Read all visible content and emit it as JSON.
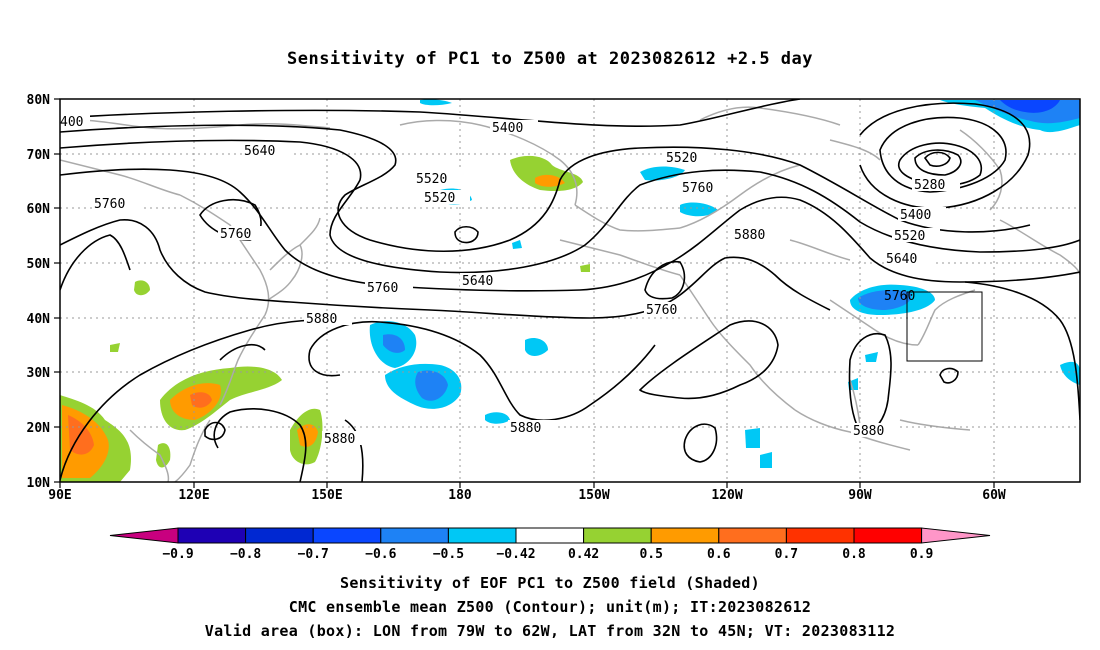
{
  "title": "Sensitivity of PC1 to Z500 at 2023082612 +2.5 day",
  "lat_labels": [
    "80N",
    "70N",
    "60N",
    "50N",
    "40N",
    "30N",
    "20N",
    "10N"
  ],
  "lon_labels": [
    "90E",
    "120E",
    "150E",
    "180",
    "150W",
    "120W",
    "90W",
    "60W"
  ],
  "contour_labels": [
    "400",
    "5400",
    "5640",
    "5520",
    "5520",
    "5760",
    "5760",
    "5760",
    "5640",
    "5520",
    "5760",
    "5880",
    "5880",
    "5280",
    "5400",
    "5520",
    "5640",
    "5760",
    "5760",
    "5880",
    "5880",
    "5880"
  ],
  "colorbar": {
    "labels": [
      "−0.9",
      "−0.8",
      "−0.7",
      "−0.6",
      "−0.5",
      "−0.42",
      "0.42",
      "0.5",
      "0.6",
      "0.7",
      "0.8",
      "0.9"
    ],
    "colors": [
      "#c8007f",
      "#1e00b4",
      "#0028d2",
      "#0a46ff",
      "#1e82f5",
      "#00c8f5",
      "#ffffff",
      "#96d232",
      "#ff9b00",
      "#ff6e1e",
      "#ff3200",
      "#ff0000",
      "#ff96c8"
    ]
  },
  "captions": [
    "Sensitivity of EOF PC1 to Z500 field (Shaded)",
    "CMC ensemble mean Z500 (Contour); unit(m); IT:2023082612",
    "Valid area (box): LON from 79W to 62W, LAT from 32N to 45N; VT: 2023083112"
  ]
}
